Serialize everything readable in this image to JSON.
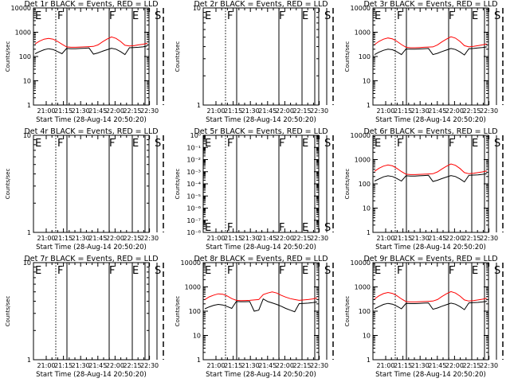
{
  "chart_data": [
    {
      "id": "p1",
      "type": "line",
      "title": "Det 1r BLACK = Events, RED = LLD",
      "xlabel": "Start Time (28-Aug-14 20:50:20)",
      "ylabel": "Counts/sec",
      "yscale": "log",
      "ylim": [
        1,
        10000
      ],
      "yticks": [
        "1",
        "10",
        "100",
        "1000",
        "10000"
      ],
      "xticks": [
        "21:00",
        "21:15",
        "21:30",
        "21:45",
        "22:00",
        "22:15",
        "22:30"
      ],
      "flags": [
        "E",
        "F",
        "F",
        "E",
        "S"
      ],
      "has_data": true,
      "series": [
        {
          "color": "#ff0000",
          "values": [
            330,
            430,
            520,
            560,
            520,
            420,
            320,
            250,
            240,
            240,
            245,
            250,
            255,
            260,
            300,
            400,
            520,
            640,
            560,
            420,
            290,
            270,
            280,
            300,
            320,
            350
          ]
        },
        {
          "color": "#000000",
          "values": [
            130,
            160,
            190,
            210,
            195,
            160,
            130,
            215,
            210,
            210,
            215,
            220,
            225,
            125,
            140,
            165,
            190,
            220,
            200,
            160,
            120,
            230,
            235,
            240,
            250,
            270
          ]
        }
      ],
      "flag_x": [
        7.5,
        34.5,
        88.5,
        118.5,
        141.5
      ],
      "flag_style": [
        "dotted",
        "solid",
        "solid",
        "solid",
        "dashed"
      ]
    },
    {
      "id": "p2",
      "type": "line",
      "title": "Det 2r BLACK = Events, RED = LLD",
      "xlabel": "Start Time (28-Aug-14 20:50:20)",
      "ylabel": "Counts/sec",
      "yscale": "log",
      "ylim": [
        1,
        10
      ],
      "yticks": [
        "1",
        "10"
      ],
      "xticks": [
        "21:00",
        "21:15",
        "21:30",
        "21:45",
        "22:00",
        "22:15",
        "22:30"
      ],
      "flags": [
        "E",
        "F",
        "F",
        "E",
        "S"
      ],
      "has_data": false,
      "series": []
    },
    {
      "id": "p3",
      "type": "line",
      "title": "Det 3r BLACK = Events, RED = LLD",
      "xlabel": "Start Time (28-Aug-14 20:50:20)",
      "ylabel": "Counts/sec",
      "yscale": "log",
      "ylim": [
        1,
        10000
      ],
      "yticks": [
        "1",
        "10",
        "100",
        "1000",
        "10000"
      ],
      "xticks": [
        "21:00",
        "21:15",
        "21:30",
        "21:45",
        "22:00",
        "22:15",
        "22:30"
      ],
      "flags": [
        "E",
        "F",
        "F",
        "E",
        "S"
      ],
      "has_data": true,
      "series": [
        {
          "color": "#ff0000",
          "values": [
            310,
            420,
            520,
            580,
            530,
            420,
            310,
            240,
            230,
            230,
            235,
            240,
            245,
            250,
            300,
            400,
            520,
            650,
            570,
            420,
            280,
            250,
            260,
            280,
            300,
            330
          ]
        },
        {
          "color": "#000000",
          "values": [
            120,
            150,
            180,
            200,
            190,
            155,
            120,
            205,
            200,
            200,
            205,
            210,
            215,
            120,
            135,
            160,
            185,
            215,
            195,
            155,
            115,
            210,
            215,
            225,
            235,
            250
          ]
        }
      ]
    },
    {
      "id": "p4",
      "type": "line",
      "title": "Det 4r BLACK = Events, RED = LLD",
      "xlabel": "Start Time (28-Aug-14 20:50:20)",
      "ylabel": "Counts/sec",
      "yscale": "log",
      "ylim": [
        1,
        10
      ],
      "yticks": [
        "1",
        "10"
      ],
      "xticks": [
        "21:00",
        "21:15",
        "21:30",
        "21:45",
        "22:00",
        "22:15",
        "22:30"
      ],
      "flags": [
        "E",
        "F",
        "F",
        "E",
        "S"
      ],
      "has_data": false,
      "series": []
    },
    {
      "id": "p5",
      "type": "line",
      "title": "Det 5r BLACK = Events, RED = LLD",
      "xlabel": "Start Time (28-Aug-14 20:50:20)",
      "ylabel": "Counts/sec",
      "yscale": "log",
      "ylim": [
        1e-08,
        1
      ],
      "yticks": [
        "10⁻⁸",
        "10⁻⁷",
        "10⁻⁶",
        "10⁻⁵",
        "10⁻⁴",
        "10⁻³",
        "10⁻²",
        "10⁻¹",
        "10⁰"
      ],
      "xticks": [
        "21:00",
        "21:15",
        "21:30",
        "21:45",
        "22:00",
        "22:15",
        "22:30"
      ],
      "flags": [
        "E",
        "F",
        "F",
        "E",
        "S"
      ],
      "has_data": false,
      "series": []
    },
    {
      "id": "p6",
      "type": "line",
      "title": "Det 6r BLACK = Events, RED = LLD",
      "xlabel": "Start Time (28-Aug-14 20:50:20)",
      "ylabel": "Counts/sec",
      "yscale": "log",
      "ylim": [
        1,
        10000
      ],
      "yticks": [
        "1",
        "10",
        "100",
        "1000",
        "10000"
      ],
      "xticks": [
        "21:00",
        "21:15",
        "21:30",
        "21:45",
        "22:00",
        "22:15",
        "22:30"
      ],
      "flags": [
        "E",
        "F",
        "F",
        "E",
        "S"
      ],
      "has_data": true,
      "series": [
        {
          "color": "#ff0000",
          "values": [
            330,
            440,
            540,
            600,
            550,
            430,
            320,
            250,
            240,
            240,
            245,
            250,
            255,
            260,
            310,
            410,
            530,
            660,
            580,
            430,
            290,
            260,
            270,
            290,
            310,
            340
          ]
        },
        {
          "color": "#000000",
          "values": [
            130,
            160,
            195,
            215,
            200,
            165,
            130,
            215,
            210,
            210,
            215,
            220,
            225,
            125,
            140,
            165,
            190,
            220,
            200,
            160,
            120,
            225,
            230,
            235,
            245,
            260
          ]
        }
      ]
    },
    {
      "id": "p7",
      "type": "line",
      "title": "Det 7r BLACK = Events, RED = LLD",
      "xlabel": "Start Time (28-Aug-14 20:50:20)",
      "ylabel": "Counts/sec",
      "yscale": "log",
      "ylim": [
        1,
        10
      ],
      "yticks": [
        "1",
        "10"
      ],
      "xticks": [
        "21:00",
        "21:15",
        "21:30",
        "21:45",
        "22:00",
        "22:15",
        "22:30"
      ],
      "flags": [
        "E",
        "F",
        "F",
        "E",
        "S"
      ],
      "has_data": false,
      "series": []
    },
    {
      "id": "p8",
      "type": "line",
      "title": "Det 8r BLACK = Events, RED = LLD",
      "xlabel": "Start Time (28-Aug-14 20:50:20)",
      "ylabel": "Counts/sec",
      "yscale": "log",
      "ylim": [
        1,
        10000
      ],
      "yticks": [
        "1",
        "10",
        "100",
        "1000",
        "10000"
      ],
      "xticks": [
        "21:00",
        "21:15",
        "21:30",
        "21:45",
        "22:00",
        "22:15",
        "22:30"
      ],
      "flags": [
        "E",
        "F",
        "F",
        "E",
        "S"
      ],
      "has_data": true,
      "series": [
        {
          "color": "#ff0000",
          "values": [
            300,
            390,
            460,
            520,
            500,
            420,
            330,
            280,
            270,
            275,
            280,
            290,
            300,
            480,
            560,
            620,
            560,
            450,
            380,
            330,
            300,
            280,
            290,
            300,
            320,
            350
          ]
        },
        {
          "color": "#000000",
          "values": [
            125,
            150,
            175,
            190,
            180,
            155,
            130,
            250,
            245,
            245,
            250,
            100,
            110,
            320,
            250,
            220,
            190,
            160,
            130,
            110,
            95,
            205,
            210,
            215,
            225,
            240
          ]
        }
      ]
    },
    {
      "id": "p9",
      "type": "line",
      "title": "Det 9r BLACK = Events, RED = LLD",
      "xlabel": "Start Time (28-Aug-14 20:50:20)",
      "ylabel": "Counts/sec",
      "yscale": "log",
      "ylim": [
        1,
        10000
      ],
      "yticks": [
        "1",
        "10",
        "100",
        "1000",
        "10000"
      ],
      "xticks": [
        "21:00",
        "21:15",
        "21:30",
        "21:45",
        "22:00",
        "22:15",
        "22:30"
      ],
      "flags": [
        "E",
        "F",
        "F",
        "E",
        "S"
      ],
      "has_data": true,
      "series": [
        {
          "color": "#ff0000",
          "values": [
            320,
            430,
            530,
            590,
            540,
            430,
            320,
            250,
            240,
            240,
            245,
            250,
            255,
            260,
            300,
            400,
            520,
            640,
            560,
            420,
            290,
            260,
            270,
            290,
            310,
            340
          ]
        },
        {
          "color": "#000000",
          "values": [
            125,
            155,
            190,
            210,
            195,
            160,
            125,
            210,
            205,
            205,
            210,
            215,
            220,
            120,
            135,
            160,
            185,
            215,
            195,
            155,
            115,
            220,
            225,
            230,
            240,
            255
          ]
        }
      ]
    }
  ]
}
